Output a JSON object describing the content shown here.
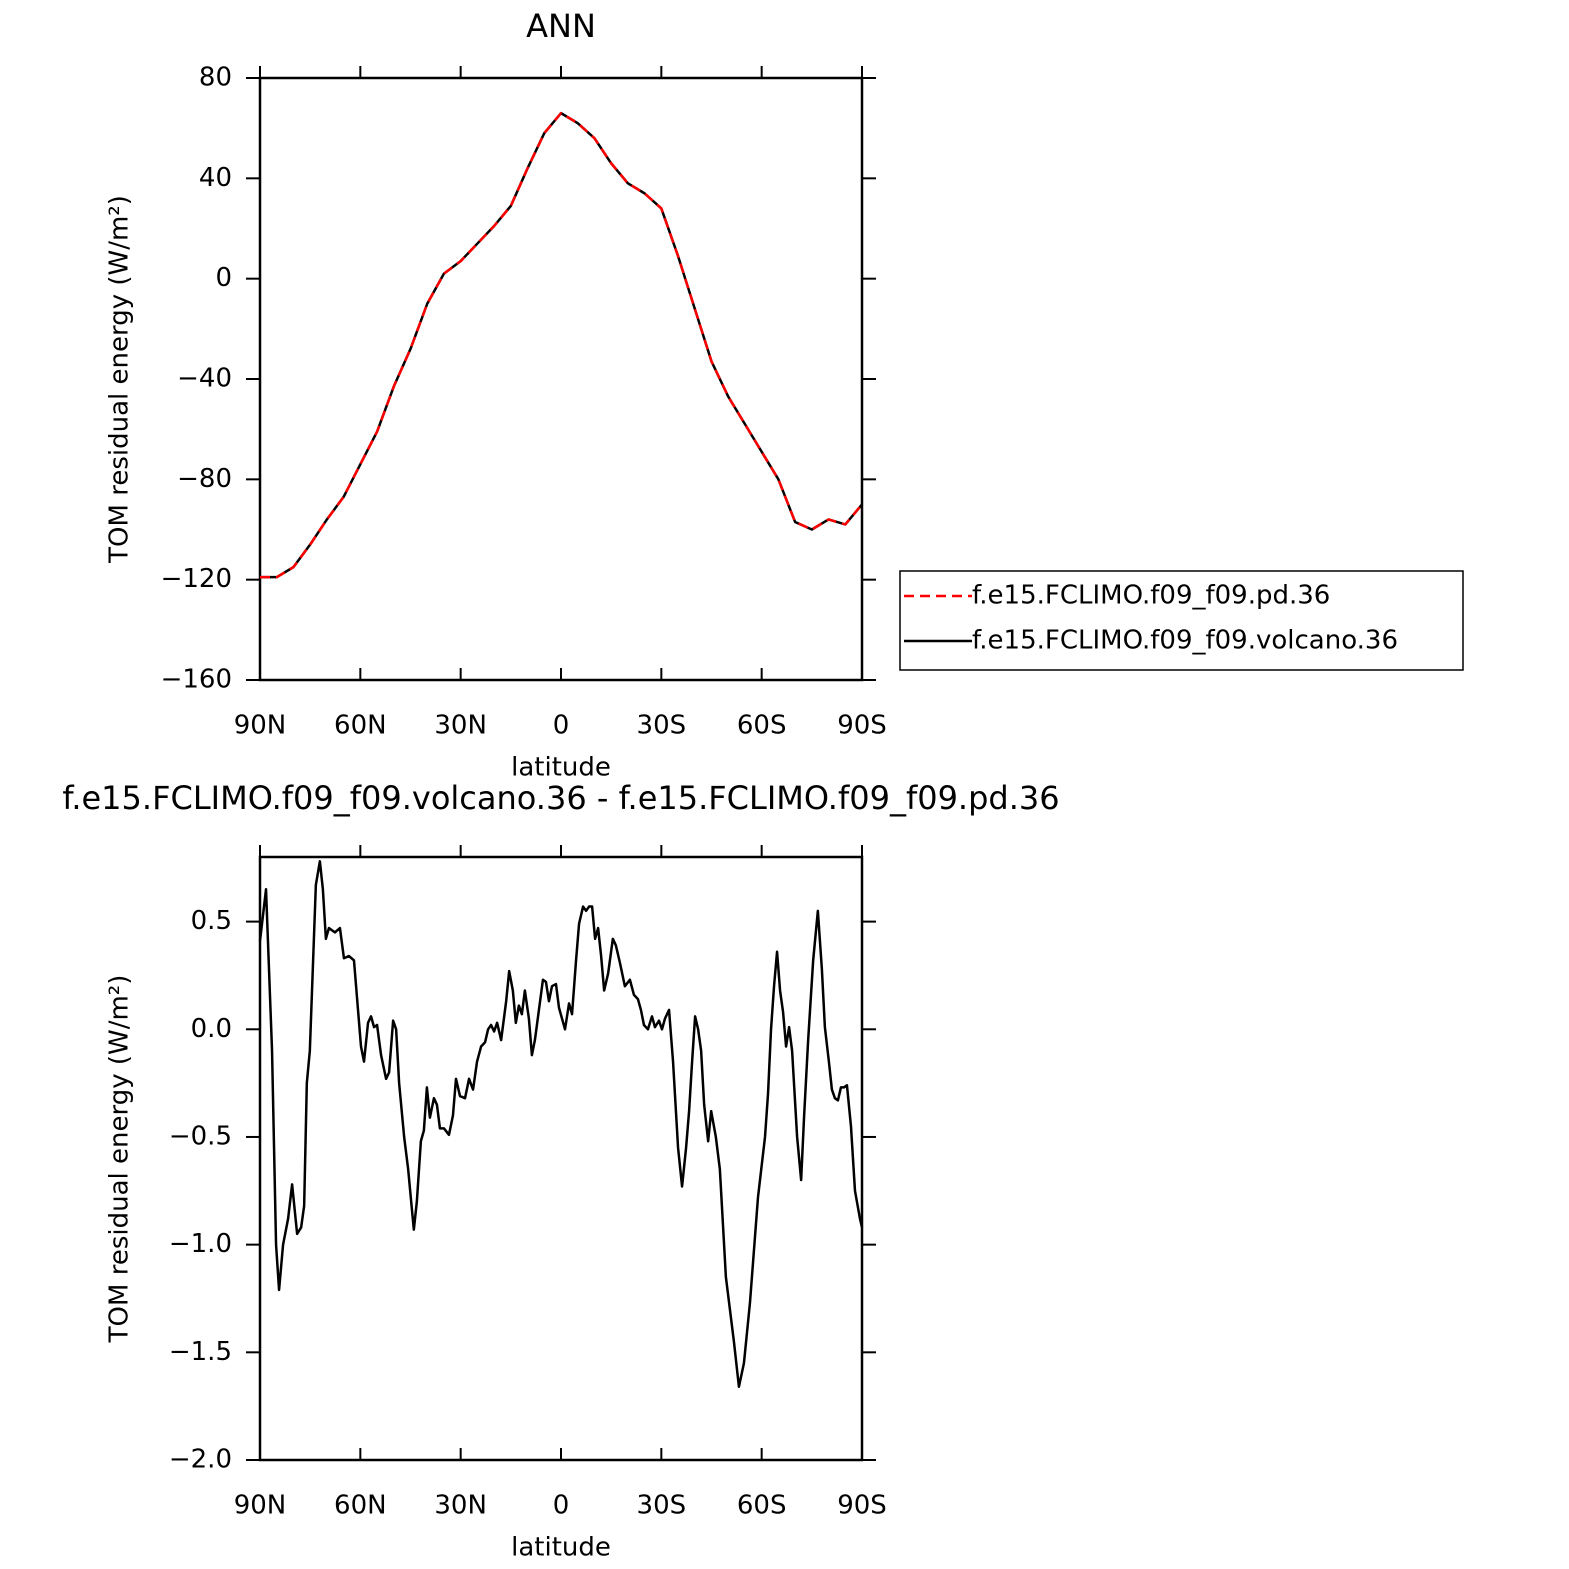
{
  "chart_data": [
    {
      "type": "line",
      "title": "ANN",
      "x_label": "latitude",
      "y_label": "TOM residual energy (W/m²)",
      "x": [
        90,
        85,
        80,
        75,
        70,
        65,
        60,
        55,
        50,
        45,
        40,
        35,
        30,
        25,
        20,
        15,
        10,
        5,
        0,
        -5,
        -10,
        -15,
        -20,
        -25,
        -30,
        -35,
        -40,
        -45,
        -50,
        -55,
        -60,
        -65,
        -70,
        -75,
        -80,
        -85,
        -90
      ],
      "series": [
        {
          "name": "f.e15.FCLIMO.f09_f09.pd.36",
          "color": "#ff0000",
          "dashed": true,
          "values": [
            -119,
            -119,
            -115,
            -106,
            -96,
            -87,
            -74,
            -61,
            -43,
            -28,
            -10,
            2,
            7,
            14,
            21,
            29,
            44,
            58,
            66,
            62,
            56,
            46,
            38,
            34,
            28,
            9,
            -12,
            -33,
            -47,
            -58,
            -69,
            -80,
            -97,
            -100,
            -96,
            -98,
            -90
          ]
        },
        {
          "name": "f.e15.FCLIMO.f09_f09.volcano.36",
          "color": "#000000",
          "dashed": false,
          "values": [
            -119,
            -119,
            -115,
            -106,
            -96,
            -87,
            -74,
            -61,
            -43,
            -28,
            -10,
            2,
            7,
            14,
            21,
            29,
            44,
            58,
            66,
            62,
            56,
            46,
            38,
            34,
            28,
            9,
            -12,
            -33,
            -47,
            -58,
            -69,
            -80,
            -97,
            -100,
            -96,
            -98,
            -90
          ]
        }
      ],
      "xlim": [
        90,
        -90
      ],
      "xticks": [
        {
          "value": 90,
          "label": "90N"
        },
        {
          "value": 60,
          "label": "60N"
        },
        {
          "value": 30,
          "label": "30N"
        },
        0,
        {
          "value": -30,
          "label": "30S"
        },
        {
          "value": -60,
          "label": "60S"
        },
        {
          "value": -90,
          "label": "90S"
        }
      ],
      "ylim": [
        -160,
        80
      ],
      "yticks": [
        80,
        40,
        0,
        {
          "value": -40,
          "label": "−40"
        },
        {
          "value": -80,
          "label": "−80"
        },
        {
          "value": -120,
          "label": "−120"
        },
        {
          "value": -160,
          "label": "−160"
        }
      ],
      "legend": "right"
    },
    {
      "type": "line",
      "title": "f.e15.FCLIMO.f09_f09.volcano.36 - f.e15.FCLIMO.f09_f09.pd.36",
      "x_label": "latitude",
      "y_label": "TOM residual energy (W/m²)",
      "x": [
        90,
        88.2,
        86.4,
        85.2,
        84.3,
        83.1,
        81.6,
        80.4,
        78.9,
        77.7,
        76.8,
        76.0,
        75.1,
        73.3,
        72.1,
        71.2,
        70.3,
        69.4,
        67.6,
        66.1,
        64.9,
        63.4,
        61.9,
        59.8,
        58.9,
        57.7,
        56.8,
        55.9,
        55.0,
        53.8,
        52.3,
        51.4,
        50.2,
        49.3,
        48.4,
        46.9,
        45.7,
        44.8,
        44.0,
        43.1,
        41.9,
        41.0,
        40.1,
        39.2,
        38.0,
        37.1,
        36.2,
        35.0,
        33.5,
        32.3,
        31.4,
        30.2,
        28.7,
        27.5,
        26.3,
        25.1,
        23.9,
        22.7,
        21.8,
        20.9,
        20.0,
        19.1,
        17.9,
        16.4,
        15.5,
        14.4,
        13.5,
        12.6,
        11.7,
        10.8,
        9.6,
        8.7,
        7.8,
        6.6,
        5.4,
        4.5,
        3.6,
        2.7,
        1.5,
        0.6,
        -1.2,
        -2.4,
        -3.3,
        -4.5,
        -5.4,
        -6.6,
        -7.5,
        -8.4,
        -9.3,
        -10.2,
        -11.1,
        -12.0,
        -12.9,
        -14.1,
        -15.5,
        -16.4,
        -17.6,
        -19.1,
        -20.6,
        -21.8,
        -23.0,
        -23.9,
        -24.8,
        -26.0,
        -27.2,
        -28.1,
        -29.3,
        -30.2,
        -31.1,
        -32.3,
        -33.5,
        -35.0,
        -36.2,
        -37.4,
        -38.3,
        -39.2,
        -40.1,
        -41.0,
        -41.9,
        -42.8,
        -44.0,
        -44.9,
        -46.3,
        -47.5,
        -48.4,
        -49.3,
        -50.5,
        -51.7,
        -53.2,
        -54.7,
        -56.5,
        -58.9,
        -61.0,
        -61.9,
        -62.8,
        -63.7,
        -64.6,
        -65.5,
        -66.4,
        -67.3,
        -68.2,
        -69.1,
        -70.6,
        -71.8,
        -72.7,
        -73.9,
        -75.4,
        -76.8,
        -78.0,
        -78.9,
        -80.1,
        -81.0,
        -81.9,
        -82.8,
        -83.7,
        -84.6,
        -85.5,
        -86.7,
        -87.9,
        -89.4,
        -90
      ],
      "values": [
        0.41,
        0.65,
        -0.1,
        -1.0,
        -1.21,
        -1.0,
        -0.88,
        -0.72,
        -0.95,
        -0.92,
        -0.82,
        -0.25,
        -0.1,
        0.67,
        0.78,
        0.65,
        0.42,
        0.47,
        0.45,
        0.47,
        0.33,
        0.34,
        0.32,
        -0.08,
        -0.15,
        0.03,
        0.06,
        0.01,
        0.02,
        -0.12,
        -0.23,
        -0.2,
        0.04,
        0.0,
        -0.25,
        -0.5,
        -0.65,
        -0.8,
        -0.93,
        -0.8,
        -0.52,
        -0.47,
        -0.27,
        -0.41,
        -0.32,
        -0.35,
        -0.46,
        -0.46,
        -0.49,
        -0.4,
        -0.23,
        -0.31,
        -0.32,
        -0.23,
        -0.28,
        -0.15,
        -0.08,
        -0.06,
        0.0,
        0.02,
        -0.01,
        0.03,
        -0.05,
        0.13,
        0.27,
        0.18,
        0.03,
        0.11,
        0.07,
        0.18,
        0.05,
        -0.12,
        -0.05,
        0.09,
        0.23,
        0.22,
        0.13,
        0.2,
        0.21,
        0.1,
        0.0,
        0.12,
        0.07,
        0.32,
        0.49,
        0.57,
        0.55,
        0.57,
        0.57,
        0.42,
        0.47,
        0.34,
        0.18,
        0.26,
        0.42,
        0.39,
        0.31,
        0.2,
        0.23,
        0.16,
        0.14,
        0.09,
        0.02,
        0.0,
        0.06,
        0.01,
        0.04,
        0.0,
        0.05,
        0.09,
        -0.15,
        -0.55,
        -0.73,
        -0.55,
        -0.38,
        -0.15,
        0.06,
        0.0,
        -0.1,
        -0.35,
        -0.52,
        -0.38,
        -0.5,
        -0.65,
        -0.9,
        -1.15,
        -1.3,
        -1.45,
        -1.66,
        -1.55,
        -1.27,
        -0.78,
        -0.5,
        -0.3,
        0.0,
        0.2,
        0.36,
        0.18,
        0.08,
        -0.08,
        0.01,
        -0.1,
        -0.5,
        -0.7,
        -0.4,
        -0.05,
        0.32,
        0.55,
        0.28,
        0.01,
        -0.15,
        -0.28,
        -0.32,
        -0.33,
        -0.27,
        -0.27,
        -0.26,
        -0.45,
        -0.75,
        -0.88,
        -0.92
      ],
      "color": "#000000",
      "xlim": [
        90,
        -90
      ],
      "xticks": [
        {
          "value": 90,
          "label": "90N"
        },
        {
          "value": 60,
          "label": "60N"
        },
        {
          "value": 30,
          "label": "30N"
        },
        0,
        {
          "value": -30,
          "label": "30S"
        },
        {
          "value": -60,
          "label": "60S"
        },
        {
          "value": -90,
          "label": "90S"
        }
      ],
      "ylim": [
        -2.0,
        0.8
      ],
      "yticks": [
        0.5,
        {
          "value": 0,
          "label": "0.0"
        },
        {
          "value": -0.5,
          "label": "−0.5"
        },
        {
          "value": -1.0,
          "label": "−1.0"
        },
        {
          "value": -1.5,
          "label": "−1.5"
        },
        {
          "value": -2.0,
          "label": "−2.0"
        }
      ]
    }
  ]
}
